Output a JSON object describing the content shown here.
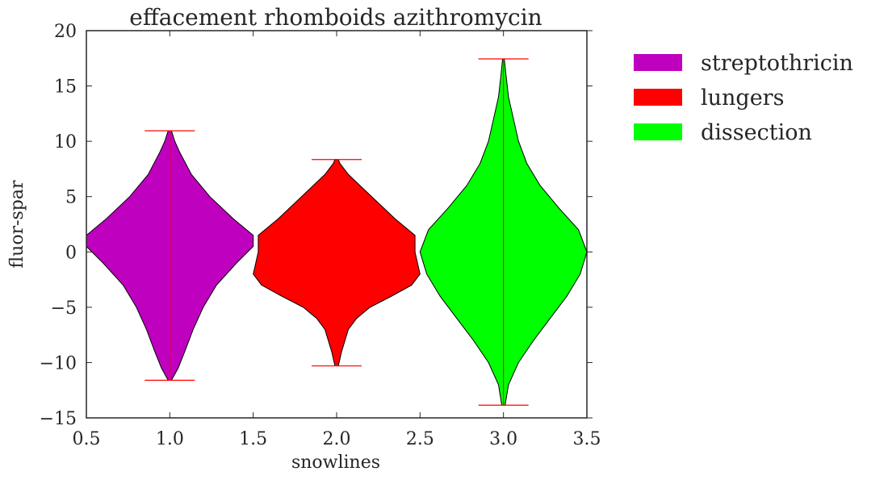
{
  "chart_data": {
    "type": "violin",
    "title": "effacement rhomboids azithromycin",
    "xlabel": "snowlines",
    "ylabel": "fluor-spar",
    "xlim": [
      0.5,
      3.5
    ],
    "ylim": [
      -15,
      20
    ],
    "xticks": [
      "0.5",
      "1.0",
      "1.5",
      "2.0",
      "2.5",
      "3.0",
      "3.5"
    ],
    "yticks": [
      "−15",
      "−10",
      "−5",
      "0",
      "5",
      "10",
      "15",
      "20"
    ],
    "legend_position": "outside-right",
    "grid": false,
    "series": [
      {
        "name": "streptothricin",
        "x": 1.0,
        "color": "#bf00bf",
        "min": -11.6,
        "max": 10.95,
        "profile": [
          [
            -11.6,
            0.01
          ],
          [
            -10.5,
            0.05
          ],
          [
            -9,
            0.09
          ],
          [
            -7,
            0.14
          ],
          [
            -5,
            0.2
          ],
          [
            -3,
            0.28
          ],
          [
            -1,
            0.4
          ],
          [
            0.5,
            0.5
          ],
          [
            1.5,
            0.5
          ],
          [
            3,
            0.38
          ],
          [
            5,
            0.24
          ],
          [
            7,
            0.13
          ],
          [
            9,
            0.06
          ],
          [
            10,
            0.03
          ],
          [
            10.95,
            0.01
          ]
        ]
      },
      {
        "name": "lungers",
        "x": 2.0,
        "color": "#ff0000",
        "min": -10.3,
        "max": 8.35,
        "profile": [
          [
            -10.3,
            0.01
          ],
          [
            -9,
            0.03
          ],
          [
            -7,
            0.07
          ],
          [
            -6,
            0.12
          ],
          [
            -5,
            0.2
          ],
          [
            -4,
            0.33
          ],
          [
            -3,
            0.45
          ],
          [
            -2,
            0.5
          ],
          [
            0,
            0.47
          ],
          [
            1.5,
            0.47
          ],
          [
            3,
            0.35
          ],
          [
            5,
            0.21
          ],
          [
            7,
            0.07
          ],
          [
            8,
            0.02
          ],
          [
            8.35,
            0.01
          ]
        ]
      },
      {
        "name": "dissection",
        "x": 3.0,
        "color": "#00ff00",
        "min": -13.85,
        "max": 17.45,
        "profile": [
          [
            -13.85,
            0.01
          ],
          [
            -12,
            0.03
          ],
          [
            -10,
            0.09
          ],
          [
            -8,
            0.18
          ],
          [
            -6,
            0.28
          ],
          [
            -4,
            0.38
          ],
          [
            -2,
            0.46
          ],
          [
            0,
            0.5
          ],
          [
            2,
            0.45
          ],
          [
            4,
            0.33
          ],
          [
            6,
            0.22
          ],
          [
            8,
            0.14
          ],
          [
            10,
            0.09
          ],
          [
            12,
            0.06
          ],
          [
            14,
            0.03
          ],
          [
            16,
            0.015
          ],
          [
            17.45,
            0.005
          ]
        ]
      }
    ]
  },
  "legend": {
    "items": [
      {
        "label": "streptothricin",
        "color": "#bf00bf"
      },
      {
        "label": "lungers",
        "color": "#ff0000"
      },
      {
        "label": "dissection",
        "color": "#00ff00"
      }
    ]
  }
}
